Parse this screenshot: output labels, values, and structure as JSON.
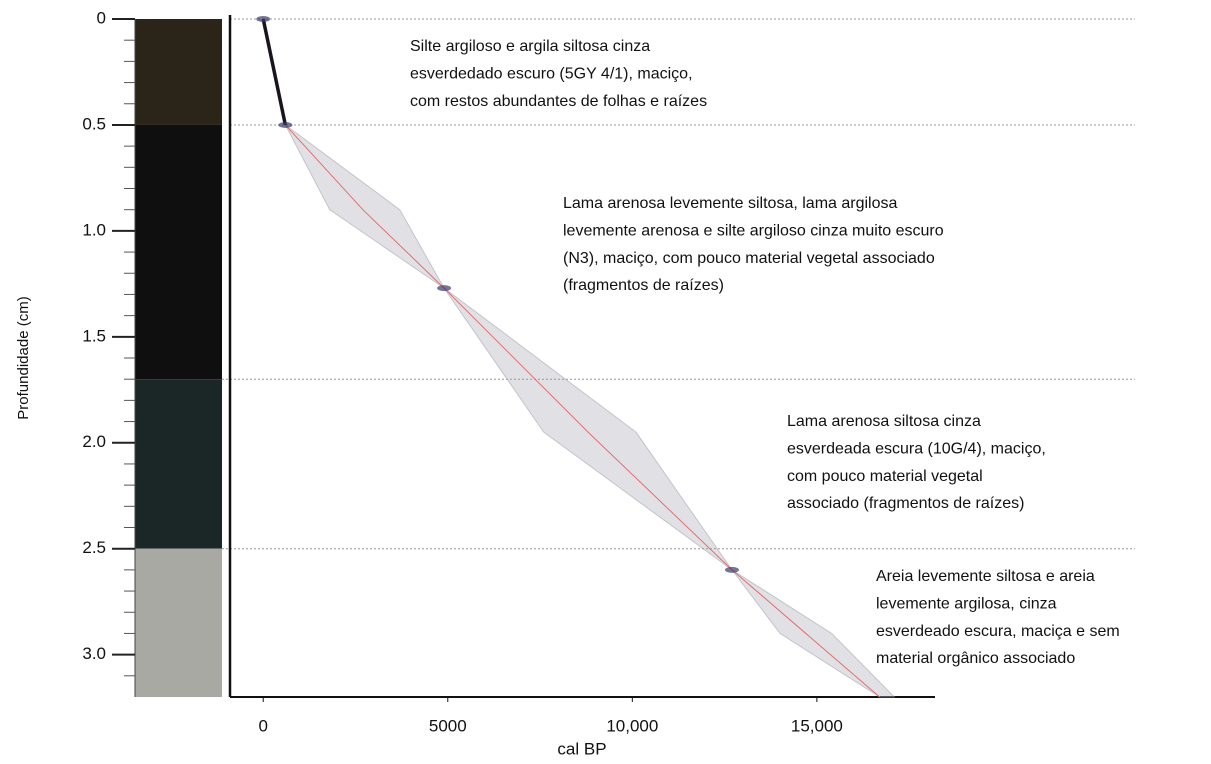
{
  "chart_data": {
    "type": "age-depth",
    "ylabel": "Profundidade (cm)",
    "xlabel": "cal BP",
    "ylim": [
      0,
      3.2
    ],
    "yticks": [
      0,
      0.5,
      {
        "value": 1,
        "label": "1.0"
      },
      1.5,
      {
        "value": 2,
        "label": "2.0"
      },
      2.5,
      {
        "value": 3,
        "label": "3.0"
      }
    ],
    "yminorticks": [
      0.1,
      0.2,
      0.3,
      0.4,
      0.6,
      0.7,
      0.8,
      0.9,
      1.1,
      1.2,
      1.3,
      1.4,
      1.6,
      1.7,
      1.8,
      1.9,
      2.1,
      2.2,
      2.3,
      2.4,
      2.6,
      2.7,
      2.8,
      2.9,
      3.1
    ],
    "xlim": [
      -900,
      18200
    ],
    "xticks": [
      0,
      5000,
      {
        "value": 10000,
        "label": "10,000"
      },
      {
        "value": 15000,
        "label": "15,000"
      }
    ],
    "depths": [
      0,
      0.5,
      0.9,
      1.27,
      1.95,
      2.6,
      2.9,
      3.2
    ],
    "ages": [
      0,
      600,
      2700,
      4900,
      8800,
      12700,
      14700,
      16700
    ],
    "age_min": [
      0,
      600,
      1800,
      4900,
      7600,
      12700,
      14000,
      16700
    ],
    "age_max": [
      0,
      600,
      3700,
      4900,
      10100,
      12700,
      15400,
      17100
    ],
    "color": "#e07070",
    "envelope_color": "#9a9aa8",
    "boundaries": [
      0,
      0.5,
      1.7,
      2.5
    ],
    "core_colors": [
      "#2b2419",
      "#0f0f10",
      "#1b2727",
      "#a9a9a4"
    ],
    "annotations": [
      [
        "Silte argiloso e argila siltosa cinza",
        "esverdedado escuro (5GY 4/1), maciço,",
        "com restos abundantes de folhas e raízes"
      ],
      [
        "Lama arenosa levemente siltosa, lama argilosa",
        "levemente arenosa e silte argiloso cinza muito escuro",
        "(N3), maciço, com pouco material vegetal associado",
        "(fragmentos de raízes)"
      ],
      [
        "Lama arenosa siltosa cinza",
        "esverdeada escura (10G/4), maciço,",
        "com pouco material vegetal",
        "associado (fragmentos de raízes)"
      ],
      [
        "Areia levemente siltosa e areia",
        "levemente argilosa, cinza",
        "esverdeado escura, maciça e sem",
        "material orgânico associado"
      ]
    ]
  }
}
